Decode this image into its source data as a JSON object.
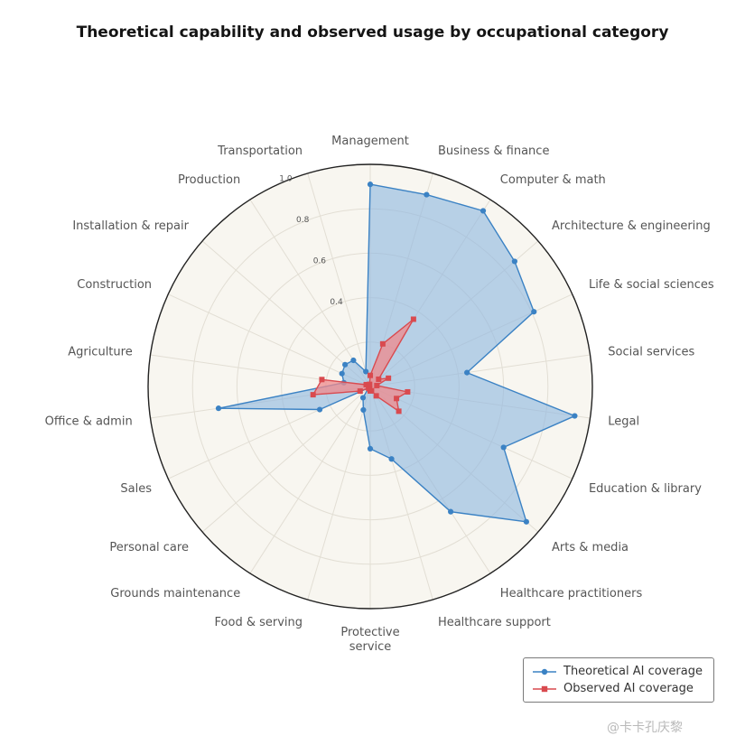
{
  "chart_data": {
    "type": "radar",
    "title": "Theoretical capability and observed usage by occupational category",
    "categories": [
      "Management",
      "Business & finance",
      "Computer & math",
      "Architecture & engineering",
      "Life & social sciences",
      "Social services",
      "Legal",
      "Education & library",
      "Arts & media",
      "Healthcare practitioners",
      "Healthcare support",
      "Protective service",
      "Food & serving",
      "Grounds maintenance",
      "Personal care",
      "Sales",
      "Office & admin",
      "Agriculture",
      "Construction",
      "Installation & repair",
      "Production",
      "Transportation"
    ],
    "series": [
      {
        "name": "Theoretical AI coverage",
        "color": "#3b82c4",
        "fill": "#8fb8e0",
        "marker": "circle",
        "values": [
          0.91,
          0.9,
          0.94,
          0.86,
          0.81,
          0.44,
          0.93,
          0.66,
          0.93,
          0.67,
          0.34,
          0.28,
          0.11,
          0.06,
          0.01,
          0.25,
          0.69,
          0.12,
          0.14,
          0.15,
          0.14,
          0.07
        ]
      },
      {
        "name": "Observed AI coverage",
        "color": "#d94a4f",
        "fill": "#ef8a8c",
        "marker": "square",
        "values": [
          0.05,
          0.2,
          0.36,
          0.05,
          0.09,
          0.03,
          0.17,
          0.13,
          0.17,
          0.05,
          0.02,
          0.02,
          0.01,
          0.01,
          0.01,
          0.05,
          0.26,
          0.22,
          0.02,
          0.01,
          0.01,
          0.01
        ]
      }
    ],
    "rlim": [
      0,
      1.0
    ],
    "rticks": [
      0.2,
      0.4,
      0.6,
      0.8,
      1.0
    ],
    "rtick_labels": [
      "",
      "0.4",
      "0.6",
      "0.8",
      "1.0"
    ],
    "background": "#f8f6f0",
    "legend_position": "bottom-right"
  },
  "watermark": "@卡卡孔庆黎"
}
